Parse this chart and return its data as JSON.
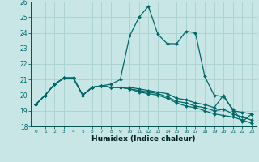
{
  "xlabel": "Humidex (Indice chaleur)",
  "xlim": [
    -0.5,
    23.5
  ],
  "ylim": [
    18,
    26
  ],
  "yticks": [
    18,
    19,
    20,
    21,
    22,
    23,
    24,
    25,
    26
  ],
  "xticks": [
    0,
    1,
    2,
    3,
    4,
    5,
    6,
    7,
    8,
    9,
    10,
    11,
    12,
    13,
    14,
    15,
    16,
    17,
    18,
    19,
    20,
    21,
    22,
    23
  ],
  "xtick_labels": [
    "0",
    "1",
    "2",
    "3",
    "4",
    "5",
    "6",
    "7",
    "8",
    "9",
    "10",
    "11",
    "12",
    "13",
    "14",
    "15",
    "16",
    "17",
    "18",
    "19",
    "20",
    "21",
    "22",
    "23"
  ],
  "bg_color": "#c8e6e6",
  "grid_color": "#a8d0d0",
  "line_color": "#006868",
  "lines": [
    [
      19.4,
      20.0,
      20.7,
      21.1,
      21.1,
      20.0,
      20.5,
      20.6,
      20.7,
      21.0,
      23.8,
      25.0,
      25.7,
      23.9,
      23.3,
      23.3,
      24.1,
      24.0,
      21.2,
      20.0,
      19.9,
      19.1,
      18.3,
      18.8
    ],
    [
      19.4,
      20.0,
      20.7,
      21.1,
      21.1,
      20.0,
      20.5,
      20.6,
      20.5,
      20.5,
      20.5,
      20.4,
      20.3,
      20.2,
      20.1,
      19.8,
      19.7,
      19.5,
      19.4,
      19.2,
      20.0,
      19.0,
      18.9,
      18.8
    ],
    [
      19.4,
      20.0,
      20.7,
      21.1,
      21.1,
      20.0,
      20.5,
      20.6,
      20.5,
      20.5,
      20.4,
      20.3,
      20.2,
      20.1,
      19.9,
      19.6,
      19.5,
      19.3,
      19.2,
      19.0,
      19.1,
      18.8,
      18.6,
      18.4
    ],
    [
      19.4,
      20.0,
      20.7,
      21.1,
      21.1,
      20.0,
      20.5,
      20.6,
      20.5,
      20.5,
      20.4,
      20.2,
      20.1,
      20.0,
      19.8,
      19.5,
      19.3,
      19.2,
      19.0,
      18.8,
      18.7,
      18.6,
      18.4,
      18.2
    ]
  ]
}
